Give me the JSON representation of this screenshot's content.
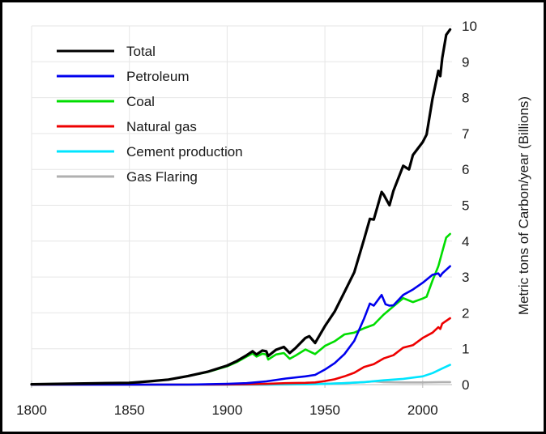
{
  "chart_data": {
    "type": "line",
    "title": "",
    "xlabel": "",
    "ylabel": "Metric tons of Carbon/year (Billions)",
    "xlim": [
      1800,
      2015
    ],
    "ylim": [
      0,
      10
    ],
    "x_ticks": [
      "1800",
      "1850",
      "1900",
      "1950",
      "2000"
    ],
    "y_ticks": [
      "0",
      "1",
      "2",
      "3",
      "4",
      "5",
      "6",
      "7",
      "8",
      "9",
      "10"
    ],
    "grid": true,
    "legend_position": "top-left",
    "series": [
      {
        "name": "Total",
        "color": "#000000",
        "points": [
          [
            1800,
            0.01
          ],
          [
            1850,
            0.05
          ],
          [
            1860,
            0.09
          ],
          [
            1870,
            0.14
          ],
          [
            1880,
            0.24
          ],
          [
            1890,
            0.36
          ],
          [
            1900,
            0.53
          ],
          [
            1905,
            0.66
          ],
          [
            1910,
            0.82
          ],
          [
            1913,
            0.93
          ],
          [
            1915,
            0.84
          ],
          [
            1918,
            0.95
          ],
          [
            1920,
            0.93
          ],
          [
            1921,
            0.8
          ],
          [
            1925,
            0.97
          ],
          [
            1929,
            1.05
          ],
          [
            1932,
            0.88
          ],
          [
            1935,
            1.02
          ],
          [
            1940,
            1.3
          ],
          [
            1942,
            1.35
          ],
          [
            1945,
            1.16
          ],
          [
            1950,
            1.63
          ],
          [
            1955,
            2.04
          ],
          [
            1960,
            2.58
          ],
          [
            1965,
            3.13
          ],
          [
            1970,
            4.05
          ],
          [
            1973,
            4.62
          ],
          [
            1975,
            4.6
          ],
          [
            1979,
            5.37
          ],
          [
            1980,
            5.3
          ],
          [
            1983,
            5.0
          ],
          [
            1985,
            5.4
          ],
          [
            1990,
            6.1
          ],
          [
            1993,
            6.0
          ],
          [
            1995,
            6.4
          ],
          [
            2000,
            6.76
          ],
          [
            2002,
            6.97
          ],
          [
            2005,
            7.97
          ],
          [
            2008,
            8.75
          ],
          [
            2009,
            8.6
          ],
          [
            2010,
            9.1
          ],
          [
            2012,
            9.75
          ],
          [
            2014,
            9.9
          ]
        ]
      },
      {
        "name": "Petroleum",
        "color": "#0000ee",
        "points": [
          [
            1800,
            0
          ],
          [
            1880,
            0
          ],
          [
            1900,
            0.02
          ],
          [
            1910,
            0.04
          ],
          [
            1920,
            0.09
          ],
          [
            1930,
            0.17
          ],
          [
            1940,
            0.23
          ],
          [
            1945,
            0.27
          ],
          [
            1950,
            0.42
          ],
          [
            1955,
            0.6
          ],
          [
            1960,
            0.85
          ],
          [
            1965,
            1.22
          ],
          [
            1970,
            1.84
          ],
          [
            1973,
            2.26
          ],
          [
            1975,
            2.2
          ],
          [
            1979,
            2.5
          ],
          [
            1981,
            2.24
          ],
          [
            1983,
            2.2
          ],
          [
            1985,
            2.21
          ],
          [
            1990,
            2.5
          ],
          [
            1995,
            2.65
          ],
          [
            2000,
            2.84
          ],
          [
            2005,
            3.06
          ],
          [
            2008,
            3.1
          ],
          [
            2009,
            3.02
          ],
          [
            2010,
            3.1
          ],
          [
            2014,
            3.3
          ]
        ]
      },
      {
        "name": "Coal",
        "color": "#00dd00",
        "points": [
          [
            1800,
            0.01
          ],
          [
            1850,
            0.05
          ],
          [
            1860,
            0.09
          ],
          [
            1870,
            0.14
          ],
          [
            1880,
            0.24
          ],
          [
            1890,
            0.35
          ],
          [
            1900,
            0.51
          ],
          [
            1905,
            0.63
          ],
          [
            1910,
            0.78
          ],
          [
            1913,
            0.87
          ],
          [
            1915,
            0.78
          ],
          [
            1918,
            0.86
          ],
          [
            1920,
            0.84
          ],
          [
            1921,
            0.7
          ],
          [
            1925,
            0.84
          ],
          [
            1929,
            0.88
          ],
          [
            1932,
            0.72
          ],
          [
            1935,
            0.81
          ],
          [
            1940,
            0.98
          ],
          [
            1945,
            0.85
          ],
          [
            1950,
            1.08
          ],
          [
            1955,
            1.21
          ],
          [
            1960,
            1.4
          ],
          [
            1965,
            1.45
          ],
          [
            1970,
            1.57
          ],
          [
            1975,
            1.67
          ],
          [
            1980,
            1.95
          ],
          [
            1985,
            2.18
          ],
          [
            1990,
            2.41
          ],
          [
            1995,
            2.3
          ],
          [
            2000,
            2.4
          ],
          [
            2002,
            2.45
          ],
          [
            2005,
            2.9
          ],
          [
            2008,
            3.3
          ],
          [
            2010,
            3.7
          ],
          [
            2012,
            4.1
          ],
          [
            2014,
            4.2
          ]
        ]
      },
      {
        "name": "Natural gas",
        "color": "#ee0000",
        "points": [
          [
            1800,
            0
          ],
          [
            1890,
            0
          ],
          [
            1900,
            0.005
          ],
          [
            1910,
            0.01
          ],
          [
            1920,
            0.02
          ],
          [
            1930,
            0.04
          ],
          [
            1940,
            0.05
          ],
          [
            1945,
            0.06
          ],
          [
            1950,
            0.1
          ],
          [
            1955,
            0.15
          ],
          [
            1960,
            0.23
          ],
          [
            1965,
            0.33
          ],
          [
            1970,
            0.49
          ],
          [
            1975,
            0.57
          ],
          [
            1980,
            0.73
          ],
          [
            1985,
            0.82
          ],
          [
            1990,
            1.03
          ],
          [
            1995,
            1.1
          ],
          [
            2000,
            1.3
          ],
          [
            2005,
            1.45
          ],
          [
            2008,
            1.6
          ],
          [
            2009,
            1.55
          ],
          [
            2010,
            1.7
          ],
          [
            2014,
            1.85
          ]
        ]
      },
      {
        "name": "Cement production",
        "color": "#00e5ff",
        "points": [
          [
            1800,
            0
          ],
          [
            1920,
            0
          ],
          [
            1930,
            0.01
          ],
          [
            1940,
            0.01
          ],
          [
            1950,
            0.02
          ],
          [
            1960,
            0.04
          ],
          [
            1970,
            0.07
          ],
          [
            1980,
            0.12
          ],
          [
            1990,
            0.16
          ],
          [
            2000,
            0.23
          ],
          [
            2005,
            0.32
          ],
          [
            2010,
            0.45
          ],
          [
            2014,
            0.55
          ]
        ]
      },
      {
        "name": "Gas Flaring",
        "color": "#b0b0b0",
        "points": [
          [
            1800,
            0
          ],
          [
            1930,
            0
          ],
          [
            1950,
            0.02
          ],
          [
            1960,
            0.04
          ],
          [
            1970,
            0.07
          ],
          [
            1975,
            0.09
          ],
          [
            1980,
            0.07
          ],
          [
            1990,
            0.06
          ],
          [
            2000,
            0.06
          ],
          [
            2010,
            0.07
          ],
          [
            2014,
            0.07
          ]
        ]
      }
    ]
  }
}
